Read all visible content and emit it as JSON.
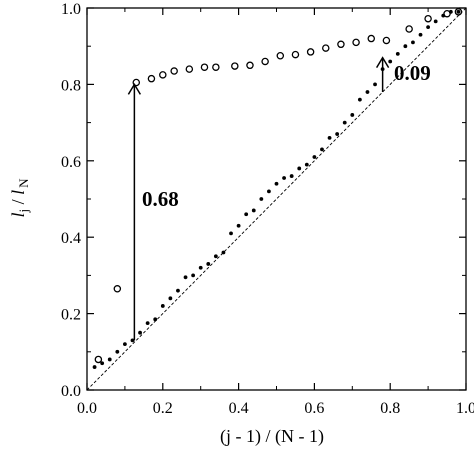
{
  "chart_data": {
    "type": "scatter",
    "xlabel": "(j - 1) / (N - 1)",
    "ylabel": {
      "main": "l",
      "sub_main": "j",
      "slash": " / ",
      "denom": "l",
      "sub_denom": "N"
    },
    "xlim": [
      0,
      1
    ],
    "ylim": [
      0,
      1
    ],
    "x_ticks": [
      {
        "value": 0.0,
        "label": "0.0"
      },
      {
        "value": 0.2,
        "label": "0.2"
      },
      {
        "value": 0.4,
        "label": "0.4"
      },
      {
        "value": 0.6,
        "label": "0.6"
      },
      {
        "value": 0.8,
        "label": "0.8"
      },
      {
        "value": 1.0,
        "label": "1.0"
      }
    ],
    "y_ticks": [
      {
        "value": 0.0,
        "label": "0.0"
      },
      {
        "value": 0.2,
        "label": "0.2"
      },
      {
        "value": 0.4,
        "label": "0.4"
      },
      {
        "value": 0.6,
        "label": "0.6"
      },
      {
        "value": 0.8,
        "label": "0.8"
      },
      {
        "value": 1.0,
        "label": "1.0"
      }
    ],
    "grid": false,
    "reference_line": {
      "style": "dashed",
      "from": [
        0,
        0
      ],
      "to": [
        1,
        1
      ]
    },
    "series": [
      {
        "marker": "open-circle",
        "points": [
          [
            0.03,
            0.08
          ],
          [
            0.08,
            0.265
          ],
          [
            0.13,
            0.805
          ],
          [
            0.17,
            0.815
          ],
          [
            0.2,
            0.825
          ],
          [
            0.23,
            0.835
          ],
          [
            0.27,
            0.84
          ],
          [
            0.31,
            0.845
          ],
          [
            0.34,
            0.845
          ],
          [
            0.39,
            0.848
          ],
          [
            0.43,
            0.85
          ],
          [
            0.47,
            0.86
          ],
          [
            0.51,
            0.875
          ],
          [
            0.55,
            0.878
          ],
          [
            0.59,
            0.885
          ],
          [
            0.63,
            0.895
          ],
          [
            0.67,
            0.905
          ],
          [
            0.71,
            0.91
          ],
          [
            0.75,
            0.92
          ],
          [
            0.79,
            0.915
          ],
          [
            0.85,
            0.945
          ],
          [
            0.9,
            0.972
          ],
          [
            0.95,
            0.985
          ],
          [
            0.98,
            0.99
          ]
        ]
      },
      {
        "marker": "dot",
        "points": [
          [
            0.02,
            0.06
          ],
          [
            0.04,
            0.07
          ],
          [
            0.06,
            0.08
          ],
          [
            0.08,
            0.1
          ],
          [
            0.1,
            0.12
          ],
          [
            0.12,
            0.13
          ],
          [
            0.14,
            0.15
          ],
          [
            0.16,
            0.175
          ],
          [
            0.18,
            0.185
          ],
          [
            0.2,
            0.22
          ],
          [
            0.22,
            0.24
          ],
          [
            0.24,
            0.26
          ],
          [
            0.26,
            0.295
          ],
          [
            0.28,
            0.3
          ],
          [
            0.3,
            0.32
          ],
          [
            0.32,
            0.33
          ],
          [
            0.34,
            0.35
          ],
          [
            0.36,
            0.36
          ],
          [
            0.38,
            0.41
          ],
          [
            0.4,
            0.43
          ],
          [
            0.42,
            0.46
          ],
          [
            0.44,
            0.47
          ],
          [
            0.46,
            0.5
          ],
          [
            0.48,
            0.52
          ],
          [
            0.5,
            0.54
          ],
          [
            0.52,
            0.555
          ],
          [
            0.54,
            0.56
          ],
          [
            0.56,
            0.58
          ],
          [
            0.58,
            0.59
          ],
          [
            0.6,
            0.61
          ],
          [
            0.62,
            0.63
          ],
          [
            0.64,
            0.66
          ],
          [
            0.66,
            0.67
          ],
          [
            0.68,
            0.7
          ],
          [
            0.7,
            0.72
          ],
          [
            0.72,
            0.76
          ],
          [
            0.74,
            0.78
          ],
          [
            0.76,
            0.8
          ],
          [
            0.78,
            0.84
          ],
          [
            0.8,
            0.86
          ],
          [
            0.82,
            0.88
          ],
          [
            0.84,
            0.9
          ],
          [
            0.86,
            0.91
          ],
          [
            0.88,
            0.93
          ],
          [
            0.9,
            0.95
          ],
          [
            0.92,
            0.965
          ],
          [
            0.94,
            0.98
          ],
          [
            0.96,
            0.99
          ],
          [
            0.98,
            0.99
          ]
        ]
      }
    ],
    "annotations": [
      {
        "label": "0.68",
        "from": [
          0.125,
          0.13
        ],
        "to": [
          0.125,
          0.8
        ],
        "label_at": [
          0.145,
          0.5
        ]
      },
      {
        "label": "0.09",
        "from": [
          0.78,
          0.78
        ],
        "to": [
          0.78,
          0.87
        ],
        "label_at": [
          0.81,
          0.83
        ]
      }
    ]
  }
}
